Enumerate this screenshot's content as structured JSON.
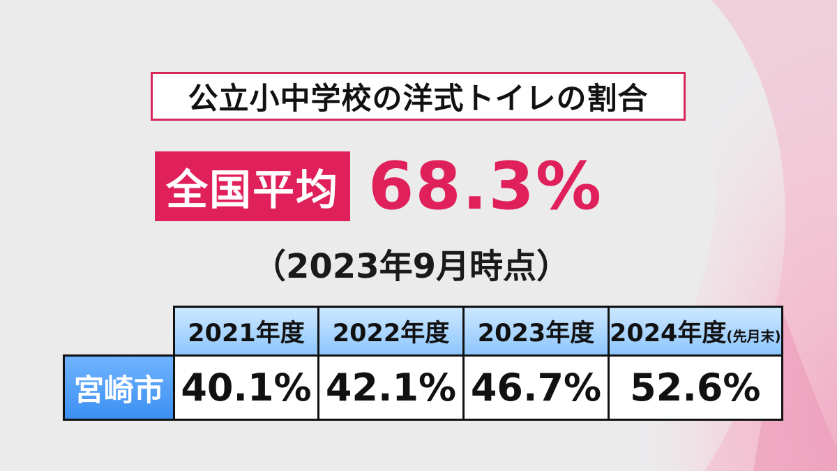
{
  "title": "公立小中学校の洋式トイレの割合",
  "national_average": {
    "label": "全国平均",
    "value": "68.3%"
  },
  "as_of": "（2023年9月時点）",
  "table": {
    "row_label": "宮崎市",
    "columns": [
      {
        "year": "2021年度",
        "note": "",
        "value": "40.1%"
      },
      {
        "year": "2022年度",
        "note": "",
        "value": "42.1%"
      },
      {
        "year": "2023年度",
        "note": "",
        "value": "46.7%"
      },
      {
        "year": "2024年度",
        "note": "(先月末)",
        "value": "52.6%"
      }
    ]
  },
  "colors": {
    "accent": "#e0205a",
    "header_blue": "#8cc6ff",
    "city_blue": "#3c8ff2",
    "background": "#ebebec"
  },
  "chart_data": {
    "type": "table",
    "title": "公立小中学校の洋式トイレの割合",
    "categories": [
      "2021年度",
      "2022年度",
      "2023年度",
      "2024年度(先月末)"
    ],
    "series": [
      {
        "name": "宮崎市",
        "values": [
          40.1,
          42.1,
          46.7,
          52.6
        ]
      }
    ],
    "reference": {
      "name": "全国平均",
      "value": 68.3,
      "as_of": "2023年9月時点"
    },
    "unit": "%"
  }
}
